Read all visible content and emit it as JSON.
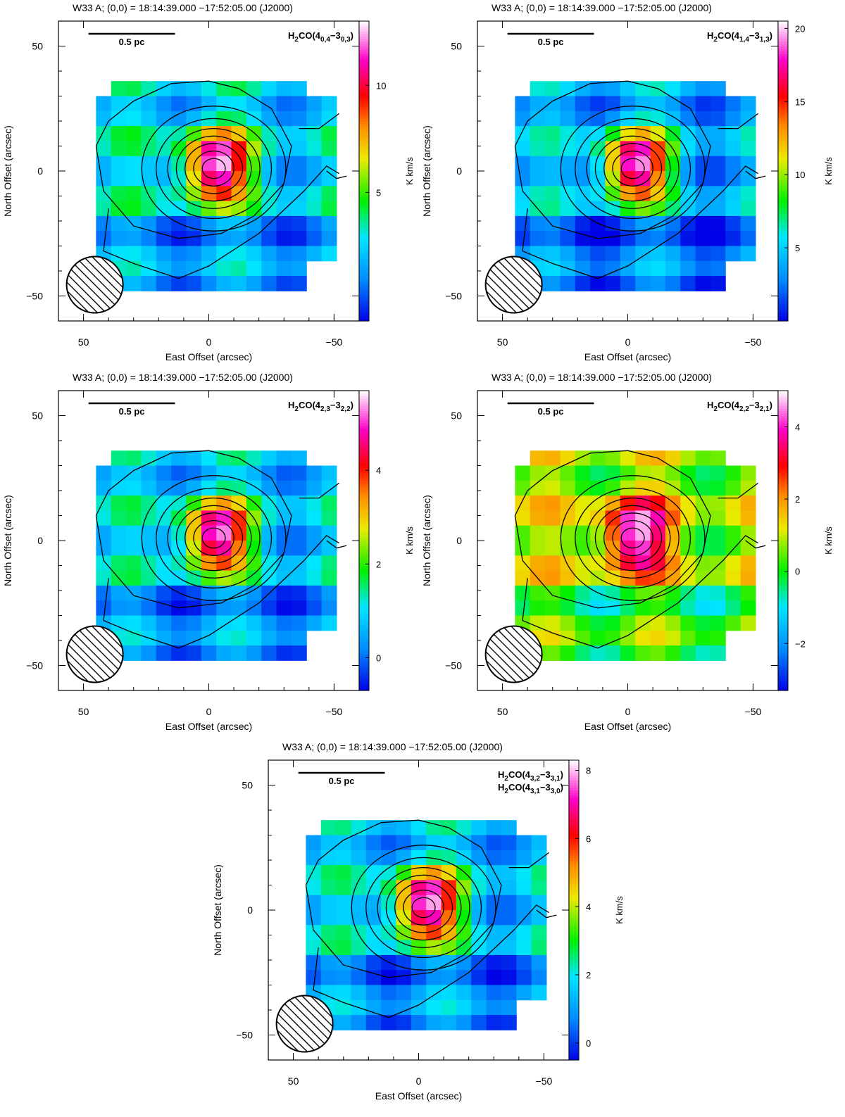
{
  "chart_data": [
    {
      "type": "heatmap",
      "title": "W33 A; (0,0) = 18:14:39.000       −17:52:05.00 (J2000)",
      "line_label": "H2CO(4_{0,4}−3_{0,3})",
      "line_label_text": "H2CO(40,4−30,3)",
      "scale_bar_label": "0.5 pc",
      "xlabel": "East Offset (arcsec)",
      "ylabel": "North Offset (arcsec)",
      "colorbar_label": "K km/s",
      "xlim": [
        60,
        -60
      ],
      "ylim": [
        -60,
        60
      ],
      "x_ticks": [
        "50",
        "0",
        "−50"
      ],
      "y_ticks": [
        "50",
        "0",
        "−50"
      ],
      "colorbar_range": [
        -1,
        13
      ],
      "colorbar_ticks": [
        "5",
        "10"
      ],
      "peak_value": 13,
      "background_value": 2.5
    },
    {
      "type": "heatmap",
      "title": "W33 A; (0,0) = 18:14:39.000       −17:52:05.00 (J2000)",
      "line_label": "H2CO(4_{1,4}−3_{1,3})",
      "line_label_text": "H2CO(41,4−31,3)",
      "scale_bar_label": "0.5 pc",
      "xlabel": "East Offset (arcsec)",
      "ylabel": "North Offset (arcsec)",
      "colorbar_label": "K km/s",
      "xlim": [
        60,
        -60
      ],
      "ylim": [
        -60,
        60
      ],
      "x_ticks": [
        "50",
        "0",
        "−50"
      ],
      "y_ticks": [
        "50",
        "0",
        "−50"
      ],
      "colorbar_range": [
        0,
        20.5
      ],
      "colorbar_ticks": [
        "5",
        "10",
        "15",
        "20"
      ],
      "peak_value": 20,
      "background_value": 4
    },
    {
      "type": "heatmap",
      "title": "W33 A; (0,0) = 18:14:39.000       −17:52:05.00 (J2000)",
      "line_label": "H2CO(4_{2,3}−3_{2,2})",
      "line_label_text": "H2CO(42,3−32,2)",
      "scale_bar_label": "0.5 pc",
      "xlabel": "East Offset (arcsec)",
      "ylabel": "North Offset (arcsec)",
      "colorbar_label": "K km/s",
      "xlim": [
        60,
        -60
      ],
      "ylim": [
        -60,
        60
      ],
      "x_ticks": [
        "50",
        "0",
        "−50"
      ],
      "y_ticks": [
        "50",
        "0",
        "−50"
      ],
      "colorbar_range": [
        -0.7,
        5.7
      ],
      "colorbar_ticks": [
        "0",
        "2",
        "4"
      ],
      "peak_value": 5.5,
      "background_value": 0.8
    },
    {
      "type": "heatmap",
      "title": "W33 A; (0,0) = 18:14:39.000       −17:52:05.00 (J2000)",
      "line_label": "H2CO(4_{2,2}−3_{2,1})",
      "line_label_text": "H2CO(42,2−32,1)",
      "scale_bar_label": "0.5 pc",
      "xlabel": "East Offset (arcsec)",
      "ylabel": "North Offset (arcsec)",
      "colorbar_label": "K km/s",
      "xlim": [
        60,
        -60
      ],
      "ylim": [
        -60,
        60
      ],
      "x_ticks": [
        "50",
        "0",
        "−50"
      ],
      "y_ticks": [
        "50",
        "0",
        "−50"
      ],
      "colorbar_range": [
        -3.3,
        5.0
      ],
      "colorbar_ticks": [
        "−2",
        "0",
        "2",
        "4"
      ],
      "peak_value": 4.8,
      "background_value": 0.8
    },
    {
      "type": "heatmap",
      "title": "W33 A; (0,0) = 18:14:39.000       −17:52:05.00 (J2000)",
      "line_label": "H2CO(4_{3,2}−3_{3,1})",
      "line_label_text": "H2CO(43,2−33,1)",
      "line_label_2": "H2CO(4_{3,1}−3_{3,0})",
      "line_label_2_text": "H2CO(43,1−33,0)",
      "scale_bar_label": "0.5 pc",
      "xlabel": "East Offset (arcsec)",
      "ylabel": "North Offset (arcsec)",
      "colorbar_label": "K km/s",
      "xlim": [
        60,
        -60
      ],
      "ylim": [
        -60,
        60
      ],
      "x_ticks": [
        "50",
        "0",
        "−50"
      ],
      "y_ticks": [
        "50",
        "0",
        "−50"
      ],
      "colorbar_range": [
        -0.5,
        8.3
      ],
      "colorbar_ticks": [
        "0",
        "2",
        "4",
        "6",
        "8"
      ],
      "peak_value": 8.2,
      "background_value": 1.5
    }
  ]
}
